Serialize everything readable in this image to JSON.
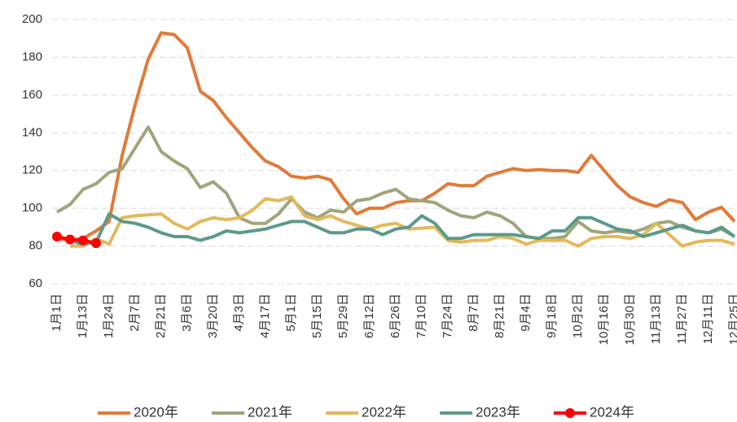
{
  "chart_data": {
    "type": "line",
    "categories": [
      "1月1日",
      null,
      "1月13日",
      null,
      "1月24日",
      null,
      "2月7日",
      null,
      "2月21日",
      null,
      "3月6日",
      null,
      "3月20日",
      null,
      "4月3日",
      null,
      "4月17日",
      null,
      "5月1日",
      null,
      "5月15日",
      null,
      "5月29日",
      null,
      "6月12日",
      null,
      "6月26日",
      null,
      "7月10日",
      null,
      "7月24日",
      null,
      "8月7日",
      null,
      "8月21日",
      null,
      "9月4日",
      null,
      "9月18日",
      null,
      "10月2日",
      null,
      "10月16日",
      null,
      "10月30日",
      null,
      "11月13日",
      null,
      "11月27日",
      null,
      "12月11日",
      null,
      "12月25日"
    ],
    "series": [
      {
        "name": "2020年",
        "color": "#e07b39",
        "values": [
          84,
          83,
          84,
          88,
          93,
          128,
          155,
          179,
          193,
          192,
          185,
          162,
          157,
          148,
          140,
          132,
          125,
          122,
          117,
          116,
          117,
          115,
          105,
          97,
          100,
          100,
          103,
          104,
          104,
          108,
          113,
          112,
          112,
          117,
          119,
          121,
          120,
          120.5,
          120,
          120,
          119,
          128,
          120,
          112,
          106,
          103,
          101,
          104.5,
          103,
          94,
          98,
          100.5,
          93
        ]
      },
      {
        "name": "2021年",
        "color": "#a0a57a",
        "values": [
          98,
          102,
          110,
          113,
          119,
          121,
          132,
          143,
          130,
          125,
          121,
          111,
          114,
          108,
          95,
          92,
          92,
          97,
          105,
          98,
          95,
          99,
          98,
          104,
          105,
          108,
          110,
          105,
          104,
          103,
          99,
          96,
          95,
          98,
          96,
          92,
          85,
          84,
          84,
          85,
          93,
          88,
          87,
          88,
          87,
          89,
          92,
          93,
          90,
          88,
          87,
          89,
          85
        ]
      },
      {
        "name": "2022年",
        "color": "#e3b95c",
        "values": [
          null,
          80,
          80,
          84,
          81,
          95,
          96,
          96.5,
          97,
          92,
          89,
          93,
          95,
          94,
          95,
          99,
          105,
          104,
          106,
          96,
          94,
          96,
          93,
          91,
          89,
          91,
          92,
          89,
          89.5,
          90,
          83,
          82,
          83,
          83,
          85,
          84,
          81,
          83,
          83,
          83,
          80,
          84,
          85,
          85,
          84,
          86,
          92,
          86,
          80,
          82,
          83,
          83,
          81
        ]
      },
      {
        "name": "2023年",
        "color": "#5b9a8b",
        "values": [
          null,
          83,
          81,
          82,
          97,
          93,
          92,
          90,
          87,
          85,
          85,
          83,
          85,
          88,
          87,
          88,
          89,
          91,
          93,
          93,
          90,
          87,
          87,
          89,
          89,
          86,
          89,
          90,
          96,
          92,
          84,
          84,
          86,
          86,
          86,
          86,
          85,
          84,
          88,
          88,
          95,
          95,
          92,
          89,
          88,
          85,
          87,
          89,
          91,
          88,
          87,
          90,
          85
        ]
      },
      {
        "name": "2024年",
        "color": "#ff0000",
        "marker": true,
        "values": [
          85,
          83.5,
          83,
          81.5,
          null,
          null,
          null,
          null,
          null,
          null,
          null,
          null,
          null,
          null,
          null,
          null,
          null,
          null,
          null,
          null,
          null,
          null,
          null,
          null,
          null,
          null,
          null,
          null,
          null,
          null,
          null,
          null,
          null,
          null,
          null,
          null,
          null,
          null,
          null,
          null,
          null,
          null,
          null,
          null,
          null,
          null,
          null,
          null,
          null,
          null,
          null,
          null,
          null
        ]
      }
    ],
    "ylim": [
      60,
      200
    ],
    "yticks": [
      60,
      80,
      100,
      120,
      140,
      160,
      180,
      200
    ],
    "grid": true
  }
}
